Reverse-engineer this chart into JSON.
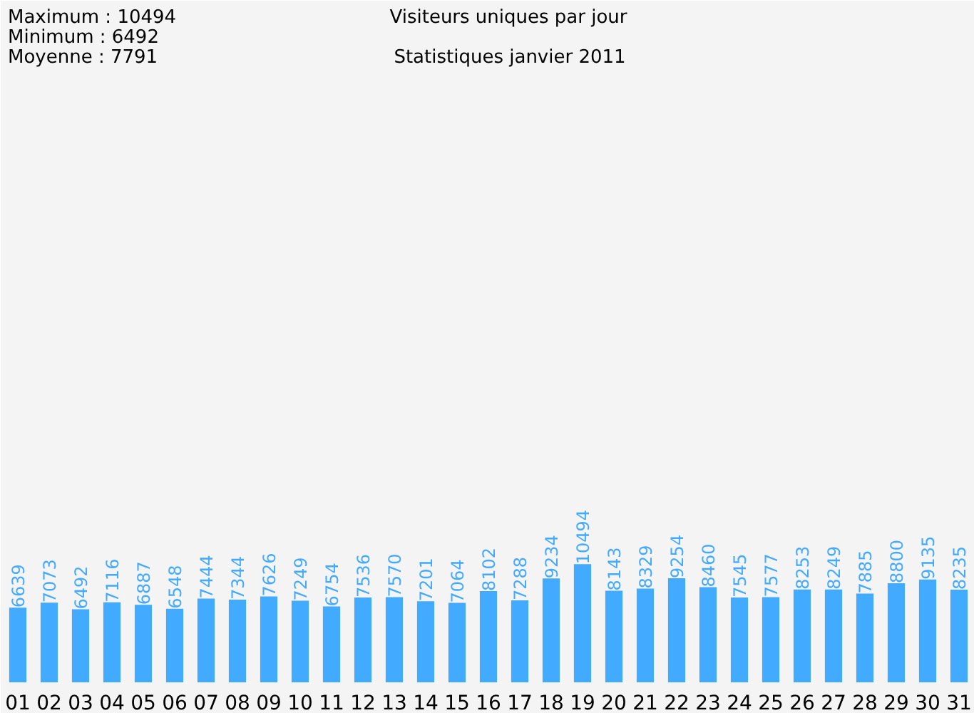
{
  "chart_data": {
    "type": "bar",
    "title": "Visiteurs uniques par jour",
    "subtitle": "Statistiques janvier 2011",
    "annotations": [
      "Maximum : 10494",
      "Minimum : 6492",
      "Moyenne : 7791"
    ],
    "categories": [
      "01",
      "02",
      "03",
      "04",
      "05",
      "06",
      "07",
      "08",
      "09",
      "10",
      "11",
      "12",
      "13",
      "14",
      "15",
      "16",
      "17",
      "18",
      "19",
      "20",
      "21",
      "22",
      "23",
      "24",
      "25",
      "26",
      "27",
      "28",
      "29",
      "30",
      "31"
    ],
    "values": [
      6639,
      7073,
      6492,
      7116,
      6887,
      6548,
      7444,
      7344,
      7626,
      7249,
      6754,
      7536,
      7570,
      7201,
      7064,
      8102,
      7288,
      9234,
      10494,
      8143,
      8329,
      9254,
      8460,
      7545,
      7577,
      8253,
      8249,
      7885,
      8800,
      9135,
      8235
    ],
    "color": "#42aaff",
    "data_labels": true
  }
}
